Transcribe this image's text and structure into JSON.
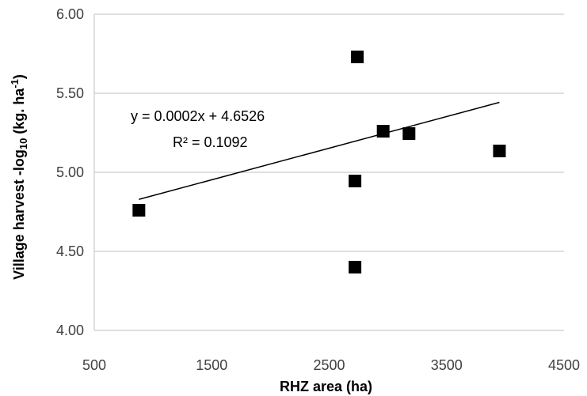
{
  "chart_data": {
    "type": "scatter",
    "xlabel": "RHZ area (ha)",
    "ylabel": {
      "prefix": "Village harvest -log",
      "sub": "10",
      "middle": " (kg. ha",
      "sup": "-1",
      "suffix": ")"
    },
    "xlim": [
      500,
      4500
    ],
    "ylim": [
      4.0,
      6.0
    ],
    "x_ticks": [
      500,
      1500,
      2500,
      3500,
      4500
    ],
    "y_ticks": [
      4.0,
      4.5,
      5.0,
      5.5,
      6.0
    ],
    "x_tick_labels": [
      "500",
      "1500",
      "2500",
      "3500",
      "4500"
    ],
    "y_tick_labels": [
      "4.00",
      "4.50",
      "5.00",
      "5.50",
      "6.00"
    ],
    "grid": "horizontal",
    "points": [
      {
        "x": 880,
        "y": 4.76
      },
      {
        "x": 2720,
        "y": 4.4
      },
      {
        "x": 2720,
        "y": 4.945
      },
      {
        "x": 2740,
        "y": 5.73
      },
      {
        "x": 2960,
        "y": 5.26
      },
      {
        "x": 3180,
        "y": 5.245
      },
      {
        "x": 3950,
        "y": 5.135
      }
    ],
    "trendline": {
      "slope": 0.0002,
      "intercept": 4.6526,
      "x_range": [
        880,
        3950
      ]
    },
    "annotations": {
      "equation": "y = 0.0002x + 4.6526",
      "r_squared": "R² = 0.1092"
    },
    "marker_color": "#000000",
    "line_color": "#000000"
  }
}
